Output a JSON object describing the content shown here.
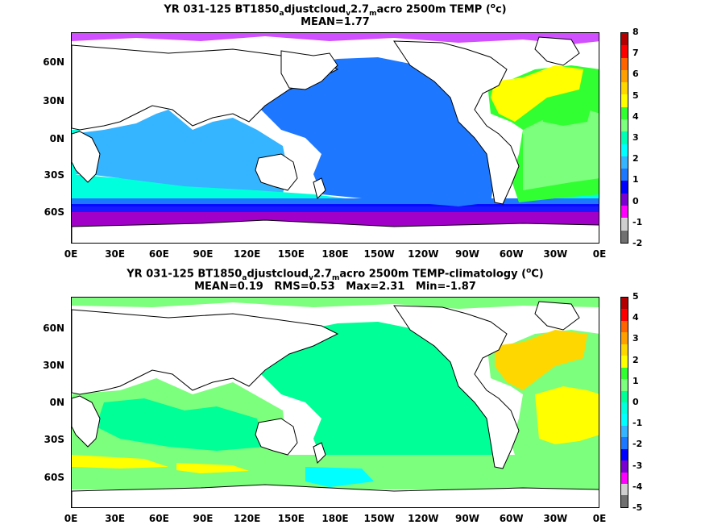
{
  "top": {
    "title1_pre": "YR 031-125 BT1850",
    "title1_sub1": "a",
    "title1_mid1": "djustcloud",
    "title1_sub2": "v",
    "title1_mid2": "2.7",
    "title1_sub3": "m",
    "title1_post": "acro 2500m TEMP (",
    "title1_sup": "o",
    "title1_unit": "c)",
    "stats": "MEAN=1.77",
    "cbar_ticks": [
      "8",
      "7",
      "6",
      "5",
      "4",
      "3",
      "2",
      "1",
      "0",
      "-1",
      "-2"
    ]
  },
  "bottom": {
    "title1_pre": "YR 031-125 BT1850",
    "title1_sub1": "a",
    "title1_mid1": "djustcloud",
    "title1_sub2": "v",
    "title1_mid2": "2.7",
    "title1_sub3": "m",
    "title1_post": "acro 2500m TEMP-climatology (",
    "title1_sup": "o",
    "title1_unit": "C)",
    "stats": "MEAN=0.19   RMS=0.53   Max=2.31   Min=-1.87",
    "cbar_ticks": [
      "5",
      "4",
      "3",
      "2",
      "1",
      "0",
      "-1",
      "-2",
      "-3",
      "-4",
      "-5"
    ]
  },
  "lat_labels": [
    "60N",
    "30N",
    "0N",
    "30S",
    "60S"
  ],
  "lon_labels": [
    "0E",
    "30E",
    "60E",
    "90E",
    "120E",
    "150E",
    "180E",
    "150W",
    "120W",
    "90W",
    "60W",
    "30W",
    "0E"
  ],
  "colors": {
    "top_scale": [
      "#f8f8f8",
      "#cfcfcf",
      "#ff00ff",
      "#a000c8",
      "#0000ff",
      "#1e78ff",
      "#35b4ff",
      "#00ffdc",
      "#32ff32",
      "#ffff00",
      "#ffd700",
      "#ffa000",
      "#ff6400",
      "#ff0000",
      "#b40000",
      "#4b4b4b"
    ],
    "cbar_top": [
      "#b40000",
      "#ff0000",
      "#ff6400",
      "#ffa000",
      "#ffd700",
      "#ffff00",
      "#32ff32",
      "#7cff7c",
      "#00ffb4",
      "#00ffff",
      "#35b4ff",
      "#1e78ff",
      "#0000ff",
      "#7a00d2",
      "#ff00ff",
      "#cfcfcf",
      "#707070"
    ],
    "cbar_bottom": [
      "#b40000",
      "#ff0000",
      "#ff6400",
      "#ffa000",
      "#ffd700",
      "#ffff00",
      "#32ff32",
      "#7cff7c",
      "#00ff96",
      "#00ffdc",
      "#00ffff",
      "#35b4ff",
      "#1e78ff",
      "#0000ff",
      "#7a00d2",
      "#ff00ff",
      "#cfcfcf",
      "#707070"
    ]
  }
}
